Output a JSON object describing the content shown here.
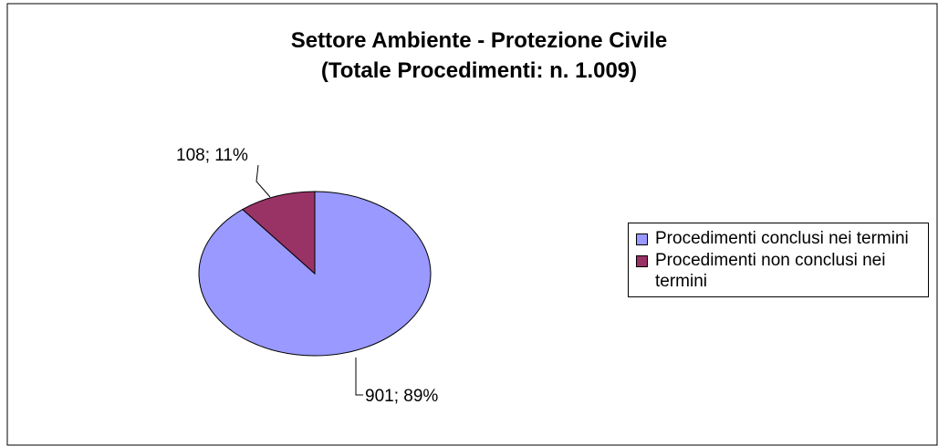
{
  "chart_data": {
    "type": "pie",
    "title": [
      "Settore Ambiente - Protezione Civile",
      "(Totale Procedimenti: n. 1.009)"
    ],
    "categories": [
      "Procedimenti conclusi nei termini",
      "Procedimenti non conclusi nei termini"
    ],
    "values": [
      901,
      108
    ],
    "value_labels": [
      "901; 89%",
      "108; 11%"
    ],
    "colors": [
      "#9999ff",
      "#993366"
    ],
    "legend": "right"
  }
}
